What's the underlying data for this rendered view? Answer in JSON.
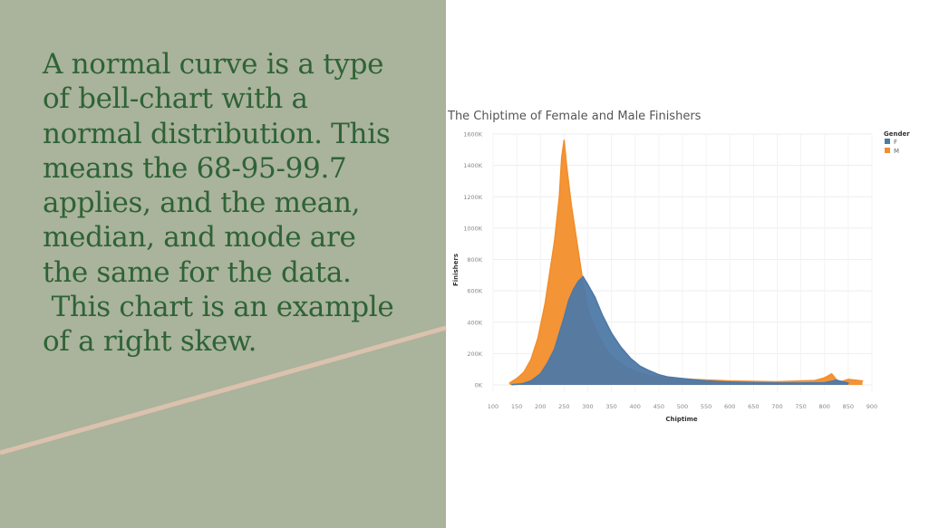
{
  "slide": {
    "body_text": "A normal curve is a type\nof bell-chart with a\nnormal distribution. This\nmeans the 68-95-99.7\napplies, and the mean,\nmedian, and mode are\nthe same for the data.\n This chart is an example\nof a right skew."
  },
  "colors": {
    "left_panel": "#aab39b",
    "text": "#2e6336",
    "stripe": "#dbc2ae",
    "female": "#4e79a7",
    "male": "#f28e2b"
  },
  "chart_data": {
    "type": "line",
    "title": "The Chiptime of Female and Male Finishers",
    "xlabel": "Chiptime",
    "ylabel": "Finishers",
    "xlim": [
      100,
      900
    ],
    "ylim": [
      0,
      1600
    ],
    "x_ticks": [
      "100",
      "150",
      "200",
      "250",
      "300",
      "350",
      "400",
      "450",
      "500",
      "550",
      "600",
      "650",
      "700",
      "750",
      "800",
      "850",
      "900"
    ],
    "y_ticks": [
      "0K",
      "200K",
      "400K",
      "600K",
      "800K",
      "1000K",
      "1200K",
      "1400K",
      "1600K"
    ],
    "grid": true,
    "legend": {
      "title": "Gender",
      "position": "top-right"
    },
    "series": [
      {
        "name": "F",
        "color": "#4e79a7",
        "points": [
          [
            140,
            2
          ],
          [
            160,
            6
          ],
          [
            180,
            25
          ],
          [
            200,
            70
          ],
          [
            215,
            140
          ],
          [
            230,
            230
          ],
          [
            240,
            330
          ],
          [
            250,
            430
          ],
          [
            260,
            540
          ],
          [
            270,
            610
          ],
          [
            280,
            660
          ],
          [
            290,
            690
          ],
          [
            300,
            640
          ],
          [
            315,
            560
          ],
          [
            330,
            450
          ],
          [
            350,
            330
          ],
          [
            370,
            240
          ],
          [
            390,
            170
          ],
          [
            410,
            120
          ],
          [
            430,
            90
          ],
          [
            450,
            65
          ],
          [
            470,
            50
          ],
          [
            500,
            40
          ],
          [
            550,
            25
          ],
          [
            600,
            18
          ],
          [
            650,
            14
          ],
          [
            700,
            12
          ],
          [
            750,
            12
          ],
          [
            800,
            14
          ],
          [
            825,
            30
          ],
          [
            850,
            12
          ]
        ]
      },
      {
        "name": "M",
        "color": "#f28e2b",
        "points": [
          [
            135,
            12
          ],
          [
            150,
            40
          ],
          [
            165,
            80
          ],
          [
            180,
            160
          ],
          [
            195,
            300
          ],
          [
            210,
            520
          ],
          [
            220,
            720
          ],
          [
            230,
            920
          ],
          [
            240,
            1200
          ],
          [
            245,
            1450
          ],
          [
            250,
            1560
          ],
          [
            255,
            1400
          ],
          [
            265,
            1150
          ],
          [
            275,
            950
          ],
          [
            290,
            650
          ],
          [
            300,
            480
          ],
          [
            320,
            330
          ],
          [
            340,
            220
          ],
          [
            360,
            160
          ],
          [
            380,
            115
          ],
          [
            400,
            85
          ],
          [
            430,
            60
          ],
          [
            470,
            45
          ],
          [
            520,
            35
          ],
          [
            600,
            25
          ],
          [
            700,
            20
          ],
          [
            780,
            28
          ],
          [
            800,
            45
          ],
          [
            815,
            70
          ],
          [
            830,
            15
          ],
          [
            850,
            35
          ],
          [
            880,
            25
          ]
        ]
      }
    ]
  }
}
